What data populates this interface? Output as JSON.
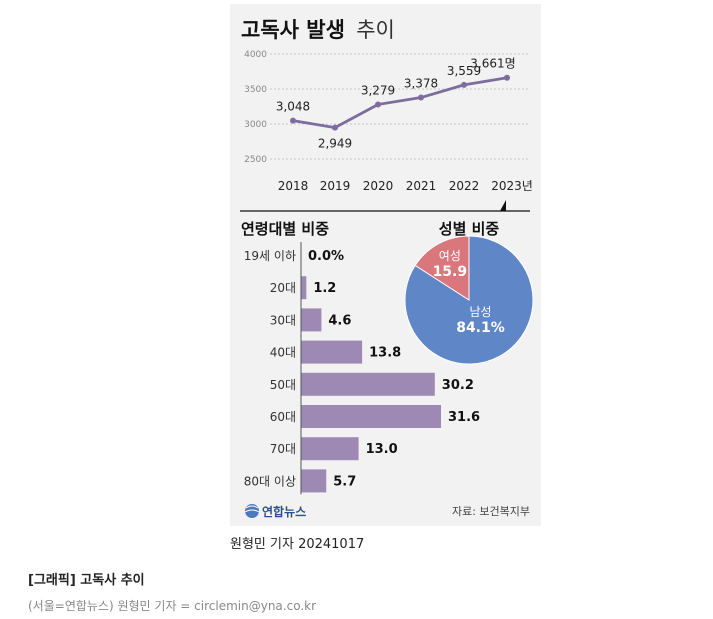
{
  "title_bold": "고독사 발생",
  "title_light": "추이",
  "source": "자료: 보건복지부",
  "logo_text": "연합뉴스",
  "credit": "원형민 기자  20241017",
  "caption": "[그래픽] 고독사 추이",
  "byline": "(서울=연합뉴스) 원형민 기자 = circlemin@yna.co.kr",
  "colors": {
    "line": "#7e6c9f",
    "bar": "#9d89b4",
    "pie_male": "#5f86c6",
    "pie_female": "#d9777c",
    "panel": "#f2f2f2"
  },
  "chart_data": [
    {
      "type": "line",
      "x": [
        "2018",
        "2019",
        "2020",
        "2021",
        "2022",
        "2023년"
      ],
      "values": [
        3048,
        2949,
        3279,
        3378,
        3559,
        3661
      ],
      "value_labels": [
        "3,048",
        "2,949",
        "3,279",
        "3,378",
        "3,559",
        "3,661명"
      ],
      "yticks": [
        "4000",
        "3500",
        "3000",
        "2500"
      ],
      "ylim": [
        2500,
        4000
      ],
      "grid": true
    },
    {
      "type": "bar",
      "title": "연령대별 비중",
      "categories": [
        "19세 이하",
        "20대",
        "30대",
        "40대",
        "50대",
        "60대",
        "70대",
        "80대 이상"
      ],
      "values": [
        0.0,
        1.2,
        4.6,
        13.8,
        30.2,
        31.6,
        13.0,
        5.7
      ],
      "value_labels": [
        "0.0%",
        "1.2",
        "4.6",
        "13.8",
        "30.2",
        "31.6",
        "13.0",
        "5.7"
      ]
    },
    {
      "type": "pie",
      "title": "성별 비중",
      "categories": [
        "남성",
        "여성"
      ],
      "values": [
        84.1,
        15.9
      ],
      "value_labels": [
        "84.1%",
        "15.9"
      ]
    }
  ]
}
